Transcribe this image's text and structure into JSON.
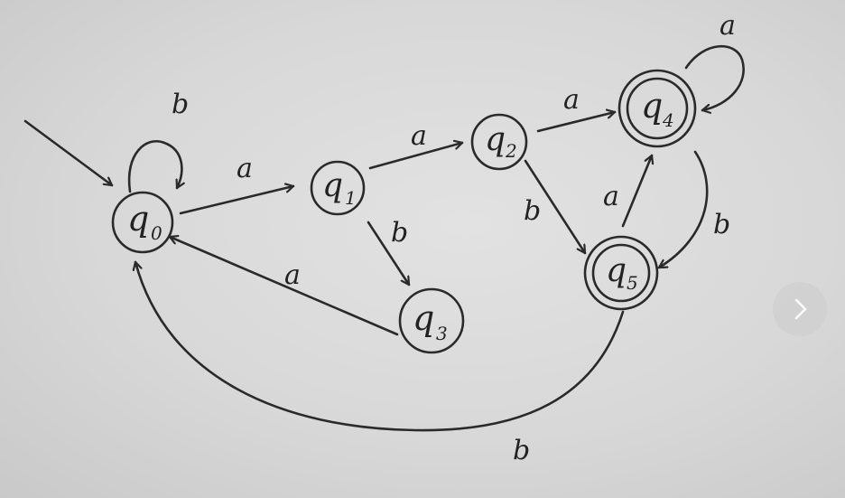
{
  "states": [
    {
      "id": "q0",
      "letter": "q",
      "sub": "0",
      "accepting": false,
      "initial": true
    },
    {
      "id": "q1",
      "letter": "q",
      "sub": "1",
      "accepting": false,
      "initial": false
    },
    {
      "id": "q2",
      "letter": "q",
      "sub": "2",
      "accepting": false,
      "initial": false
    },
    {
      "id": "q3",
      "letter": "q",
      "sub": "3",
      "accepting": false,
      "initial": false
    },
    {
      "id": "q4",
      "letter": "q",
      "sub": "4",
      "accepting": true,
      "initial": false
    },
    {
      "id": "q5",
      "letter": "q",
      "sub": "5",
      "accepting": true,
      "initial": false
    }
  ],
  "transitions": [
    {
      "from": "q0",
      "to": "q0",
      "symbol": "b"
    },
    {
      "from": "q0",
      "to": "q1",
      "symbol": "a"
    },
    {
      "from": "q1",
      "to": "q2",
      "symbol": "a"
    },
    {
      "from": "q1",
      "to": "q3",
      "symbol": "b"
    },
    {
      "from": "q2",
      "to": "q4",
      "symbol": "a"
    },
    {
      "from": "q2",
      "to": "q5",
      "symbol": "b"
    },
    {
      "from": "q3",
      "to": "q0",
      "symbol": "a"
    },
    {
      "from": "q4",
      "to": "q4",
      "symbol": "a"
    },
    {
      "from": "q4",
      "to": "q5",
      "symbol": "b"
    },
    {
      "from": "q5",
      "to": "q4",
      "symbol": "a"
    },
    {
      "from": "q5",
      "to": "q0",
      "symbol": "b"
    }
  ]
}
